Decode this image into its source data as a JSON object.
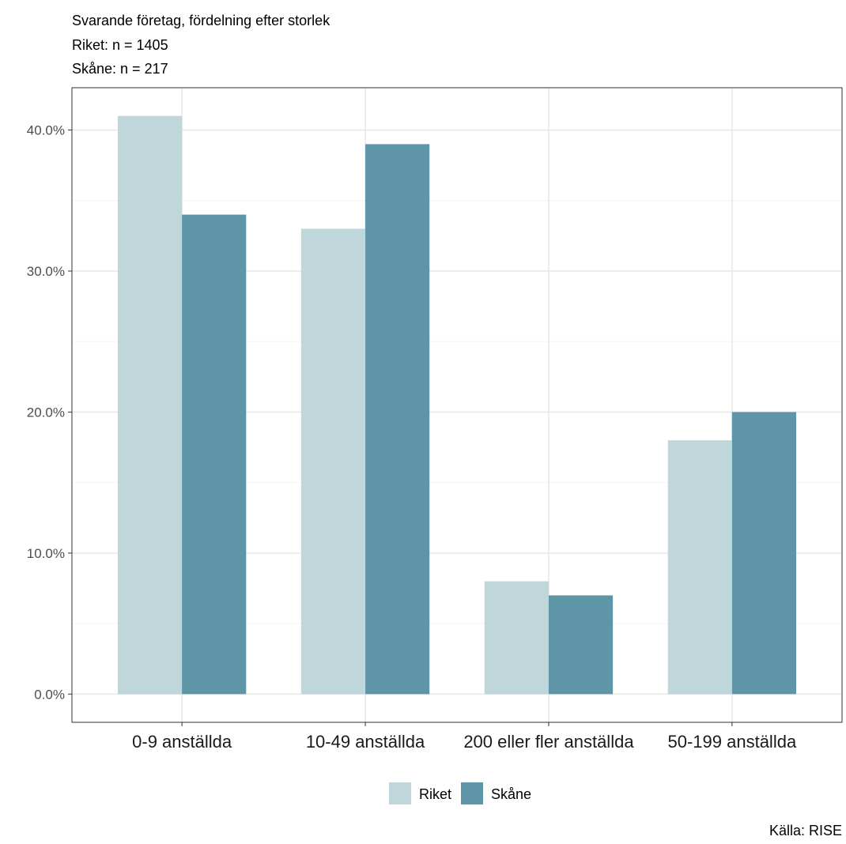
{
  "chart_data": {
    "type": "bar",
    "title": "Svarande företag, fördelning efter storlek",
    "subtitle_lines": [
      "Riket: n = 1405",
      "Skåne: n = 217"
    ],
    "categories": [
      "0-9 anställda",
      "10-49 anställda",
      "200 eller fler anställda",
      "50-199 anställda"
    ],
    "series": [
      {
        "name": "Riket",
        "color": "#bfd7da",
        "values": [
          41,
          33,
          8,
          18
        ]
      },
      {
        "name": "Skåne",
        "color": "#5e95a7",
        "values": [
          34,
          39,
          7,
          20
        ]
      }
    ],
    "y_ticks": [
      0,
      10,
      20,
      30,
      40
    ],
    "y_tick_labels": [
      "0.0%",
      "10.0%",
      "20.0%",
      "30.0%",
      "40.0%"
    ],
    "ylim": [
      -2,
      43
    ],
    "grid": true,
    "legend_position": "bottom",
    "caption": "Källa: RISE"
  }
}
